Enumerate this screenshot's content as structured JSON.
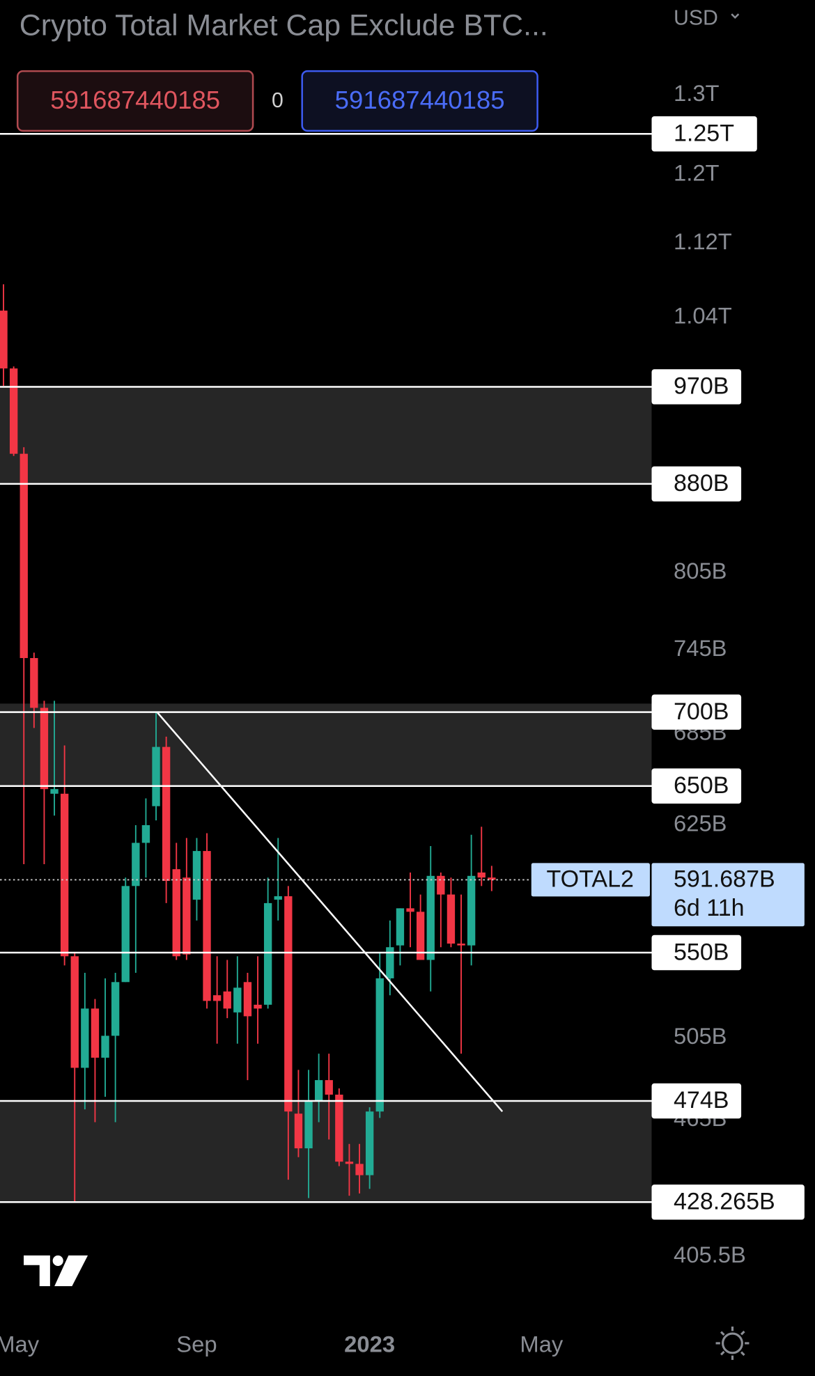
{
  "chart_data": {
    "type": "candlestick",
    "title": "Crypto Total Market Cap Exclude BTC...",
    "currency": "USD",
    "orders": [
      "591687440185",
      "0",
      "591687440185"
    ],
    "up_color": "#22ab94",
    "down_color": "#f23645",
    "open": [
      1047,
      988,
      907,
      739,
      703,
      645,
      645,
      548,
      490,
      520,
      495,
      506,
      534,
      588,
      614,
      637,
      676,
      598,
      593,
      580,
      609,
      527,
      529,
      518,
      534,
      522,
      522,
      580,
      582,
      468,
      452,
      474,
      484,
      477,
      446,
      445,
      440,
      469,
      536,
      554,
      575,
      573,
      546,
      594,
      583,
      555,
      554,
      596,
      593
    ],
    "high": [
      1075,
      990,
      913,
      743,
      708,
      708,
      677,
      550,
      539,
      525,
      536,
      539,
      593,
      625,
      642,
      700,
      683,
      614,
      617,
      617,
      620,
      548,
      546,
      548,
      539,
      548,
      593,
      617,
      588,
      489,
      489,
      497,
      497,
      480,
      454,
      454,
      471,
      550,
      568,
      575,
      596,
      583,
      612,
      596,
      593,
      583,
      619,
      624,
      600
    ],
    "low": [
      971,
      905,
      601,
      689,
      601,
      631,
      543,
      428,
      470,
      464,
      476,
      464,
      534,
      539,
      593,
      628,
      578,
      546,
      546,
      568,
      520,
      502,
      515,
      502,
      484,
      502,
      520,
      568,
      438,
      448,
      430,
      464,
      456,
      444,
      431,
      432,
      434,
      466,
      527,
      543,
      553,
      546,
      529,
      553,
      553,
      497,
      543,
      588,
      585
    ],
    "close": [
      988,
      907,
      739,
      703,
      648,
      648,
      548,
      490,
      520,
      495,
      506,
      534,
      588,
      614,
      625,
      676,
      591,
      548,
      549,
      609,
      524,
      524,
      520,
      531,
      516,
      520,
      578,
      582,
      469,
      452,
      474,
      484,
      477,
      446,
      445,
      440,
      469,
      536,
      553,
      575,
      573,
      546,
      594,
      583,
      555,
      554,
      594,
      593,
      591.687
    ],
    "xlim": [
      -0.345,
      63.73
    ],
    "xticks": [
      {
        "value": 1.38,
        "label": "May"
      },
      {
        "value": 19.0,
        "label": "Sep"
      },
      {
        "value": 36.0,
        "label": "2023"
      },
      {
        "value": 52.9,
        "label": "May"
      }
    ],
    "ylim": [
      381.7,
      1429.6
    ],
    "log": true,
    "yticks": [
      {
        "value": 1300,
        "label": "1.3T"
      },
      {
        "value": 1200,
        "label": "1.2T"
      },
      {
        "value": 1120,
        "label": "1.12T"
      },
      {
        "value": 1040,
        "label": "1.04T"
      },
      {
        "value": 805,
        "label": "805B"
      },
      {
        "value": 745,
        "label": "745B"
      },
      {
        "value": 685,
        "label": "685B"
      },
      {
        "value": 625,
        "label": "625B"
      },
      {
        "value": 505,
        "label": "505B"
      },
      {
        "value": 465,
        "label": "465B"
      },
      {
        "value": 405.5,
        "label": "405.5B"
      }
    ],
    "levels": [
      {
        "value": 1250,
        "label": "1.25T"
      },
      {
        "value": 970,
        "label": "970B"
      },
      {
        "value": 880,
        "label": "880B"
      },
      {
        "value": 700,
        "label": "700B"
      },
      {
        "value": 650,
        "label": "650B"
      },
      {
        "value": 550,
        "label": "550B"
      },
      {
        "value": 474,
        "label": "474B"
      },
      {
        "value": 428.265,
        "label": "428.265B"
      }
    ],
    "zones": [
      [
        880,
        970
      ],
      [
        650,
        706
      ],
      [
        428.265,
        474
      ]
    ],
    "trendline": {
      "x": [
        15.1,
        49.05
      ],
      "y": [
        700,
        469
      ]
    },
    "last": {
      "symbol": "TOTAL2",
      "label": "591.687B",
      "countdown": "6d 11h"
    }
  }
}
